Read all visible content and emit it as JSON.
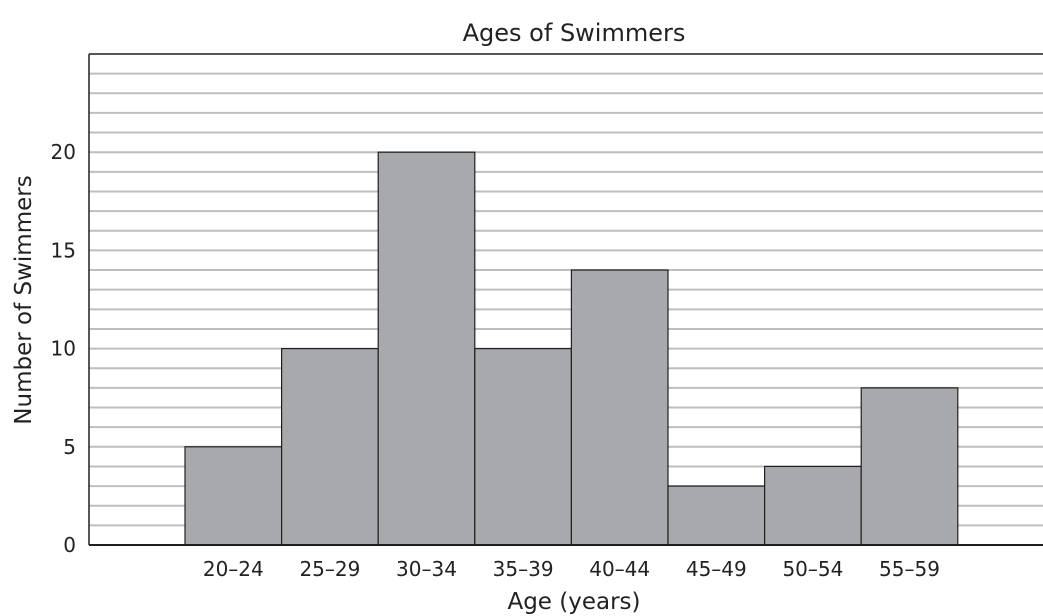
{
  "chart_data": {
    "type": "bar",
    "title": "Ages of Swimmers",
    "xlabel": "Age (years)",
    "ylabel": "Number of Swimmers",
    "categories": [
      "20–24",
      "25–29",
      "30–34",
      "35–39",
      "40–44",
      "45–49",
      "50–54",
      "55–59"
    ],
    "values": [
      5,
      10,
      20,
      10,
      14,
      3,
      4,
      8
    ],
    "ylim": [
      0,
      25
    ],
    "yticks": [
      0,
      5,
      10,
      15,
      20
    ],
    "grid_step": 1,
    "grid": true,
    "legend": "none",
    "colors": {
      "bar_fill": "#a7a9ac",
      "bar_stroke": "#231f20",
      "grid": "#bcbec0",
      "axis": "#231f20"
    }
  }
}
